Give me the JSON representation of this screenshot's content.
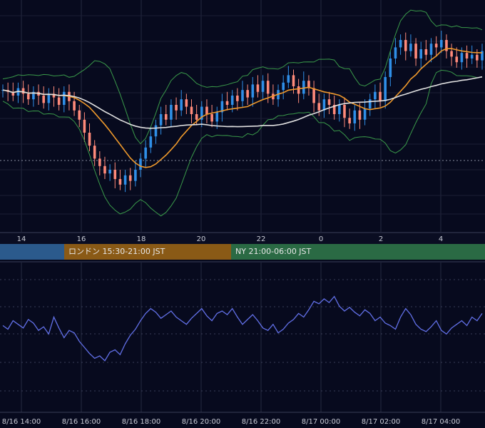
{
  "chart_data": [
    {
      "type": "candlestick",
      "title": "",
      "top_axis_ticks": [
        "14",
        "16",
        "18",
        "20",
        "22",
        "0",
        "2",
        "4"
      ],
      "session_bars": [
        {
          "label": "",
          "color": "#2b5a8c"
        },
        {
          "label": "ロンドン 15:30-21:00 JST",
          "color": "#8a5a16"
        },
        {
          "label": "NY 21:00-06:00 JST",
          "color": "#2a6a44"
        }
      ],
      "price_scale": [
        0,
        100
      ],
      "ohlc_close_series": [
        63,
        62,
        60,
        64,
        61,
        58,
        62,
        60,
        56,
        61,
        59,
        55,
        62,
        57,
        52,
        47,
        40,
        33,
        26,
        22,
        18,
        20,
        15,
        12,
        17,
        14,
        20,
        26,
        32,
        38,
        44,
        50,
        47,
        55,
        52,
        58,
        54,
        50,
        47,
        54,
        50,
        46,
        51,
        57,
        55,
        60,
        57,
        63,
        59,
        66,
        62,
        68,
        61,
        58,
        63,
        67,
        71,
        65,
        61,
        68,
        64,
        56,
        52,
        58,
        55,
        50,
        55,
        48,
        45,
        52,
        47,
        53,
        58,
        62,
        57,
        70,
        80,
        86,
        90,
        84,
        88,
        80,
        85,
        82,
        88,
        86,
        90,
        84,
        81,
        78,
        83,
        80,
        82,
        79,
        84
      ],
      "series": [
        {
          "name": "",
          "color": "#e0e0e0",
          "type": "long_moving_average"
        },
        {
          "name": "",
          "color": "#f09a2c",
          "type": "short_moving_average"
        },
        {
          "name": "",
          "color": "#3a9a4a",
          "type": "bollinger_bands"
        }
      ],
      "up_color": "#2f8fe8",
      "down_color": "#ff8a7a"
    },
    {
      "type": "line",
      "title": "",
      "x_tick_labels": [
        "8/16 14:00",
        "8/16 16:00",
        "8/16 18:00",
        "8/16 20:00",
        "8/16 22:00",
        "8/17 00:00",
        "8/17 02:00",
        "8/17 04:00"
      ],
      "oscillator_values": [
        48,
        45,
        52,
        49,
        46,
        53,
        50,
        44,
        47,
        41,
        55,
        46,
        38,
        44,
        42,
        35,
        30,
        25,
        21,
        23,
        19,
        26,
        28,
        24,
        33,
        40,
        45,
        52,
        58,
        62,
        59,
        54,
        57,
        60,
        55,
        52,
        49,
        54,
        58,
        62,
        56,
        52,
        58,
        60,
        57,
        62,
        55,
        49,
        53,
        57,
        52,
        46,
        44,
        49,
        42,
        45,
        50,
        53,
        58,
        55,
        61,
        68,
        66,
        70,
        67,
        72,
        64,
        60,
        63,
        59,
        56,
        61,
        58,
        52,
        55,
        50,
        48,
        45,
        55,
        62,
        57,
        49,
        45,
        43,
        47,
        52,
        44,
        41,
        46,
        49,
        52,
        48,
        55,
        52,
        58
      ],
      "ylim": [
        0,
        100
      ],
      "line_color": "#6270e8"
    }
  ]
}
